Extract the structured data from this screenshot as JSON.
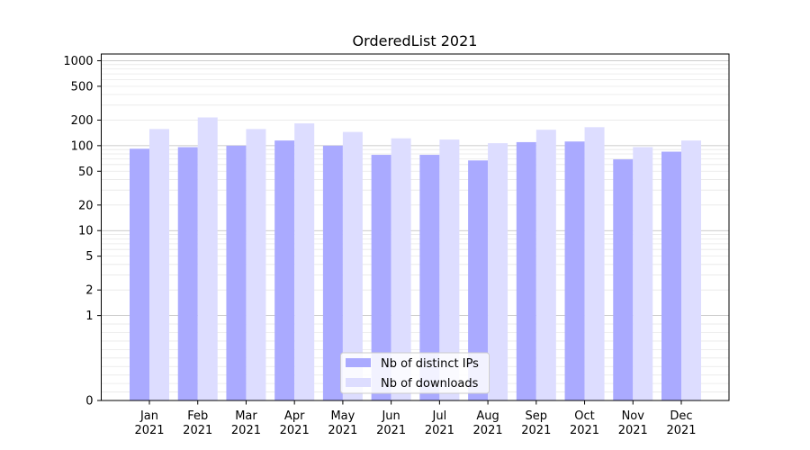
{
  "chart_data": {
    "type": "bar",
    "title": "OrderedList 2021",
    "xlabel": "",
    "ylabel": "",
    "yscale": "symlog",
    "ylim": [
      0,
      1200
    ],
    "yticks": [
      {
        "value": 0,
        "label": "0"
      },
      {
        "value": 1,
        "label": "1"
      },
      {
        "value": 2,
        "label": "2"
      },
      {
        "value": 5,
        "label": "5"
      },
      {
        "value": 10,
        "label": "10"
      },
      {
        "value": 20,
        "label": "20"
      },
      {
        "value": 50,
        "label": "50"
      },
      {
        "value": 100,
        "label": "100"
      },
      {
        "value": 200,
        "label": "200"
      },
      {
        "value": 500,
        "label": "500"
      },
      {
        "value": 1000,
        "label": "1000"
      }
    ],
    "grid": true,
    "legend_position": "lower center",
    "categories": [
      {
        "month": "Jan",
        "year": "2021"
      },
      {
        "month": "Feb",
        "year": "2021"
      },
      {
        "month": "Mar",
        "year": "2021"
      },
      {
        "month": "Apr",
        "year": "2021"
      },
      {
        "month": "May",
        "year": "2021"
      },
      {
        "month": "Jun",
        "year": "2021"
      },
      {
        "month": "Jul",
        "year": "2021"
      },
      {
        "month": "Aug",
        "year": "2021"
      },
      {
        "month": "Sep",
        "year": "2021"
      },
      {
        "month": "Oct",
        "year": "2021"
      },
      {
        "month": "Nov",
        "year": "2021"
      },
      {
        "month": "Dec",
        "year": "2021"
      }
    ],
    "series": [
      {
        "name": "Nb of distinct IPs",
        "color": "#aaaaff",
        "values": [
          92,
          96,
          100,
          115,
          100,
          78,
          78,
          67,
          110,
          112,
          69,
          85
        ]
      },
      {
        "name": "Nb of downloads",
        "color": "#ddddff",
        "values": [
          157,
          215,
          157,
          183,
          145,
          122,
          118,
          107,
          154,
          165,
          96,
          115
        ]
      }
    ]
  }
}
